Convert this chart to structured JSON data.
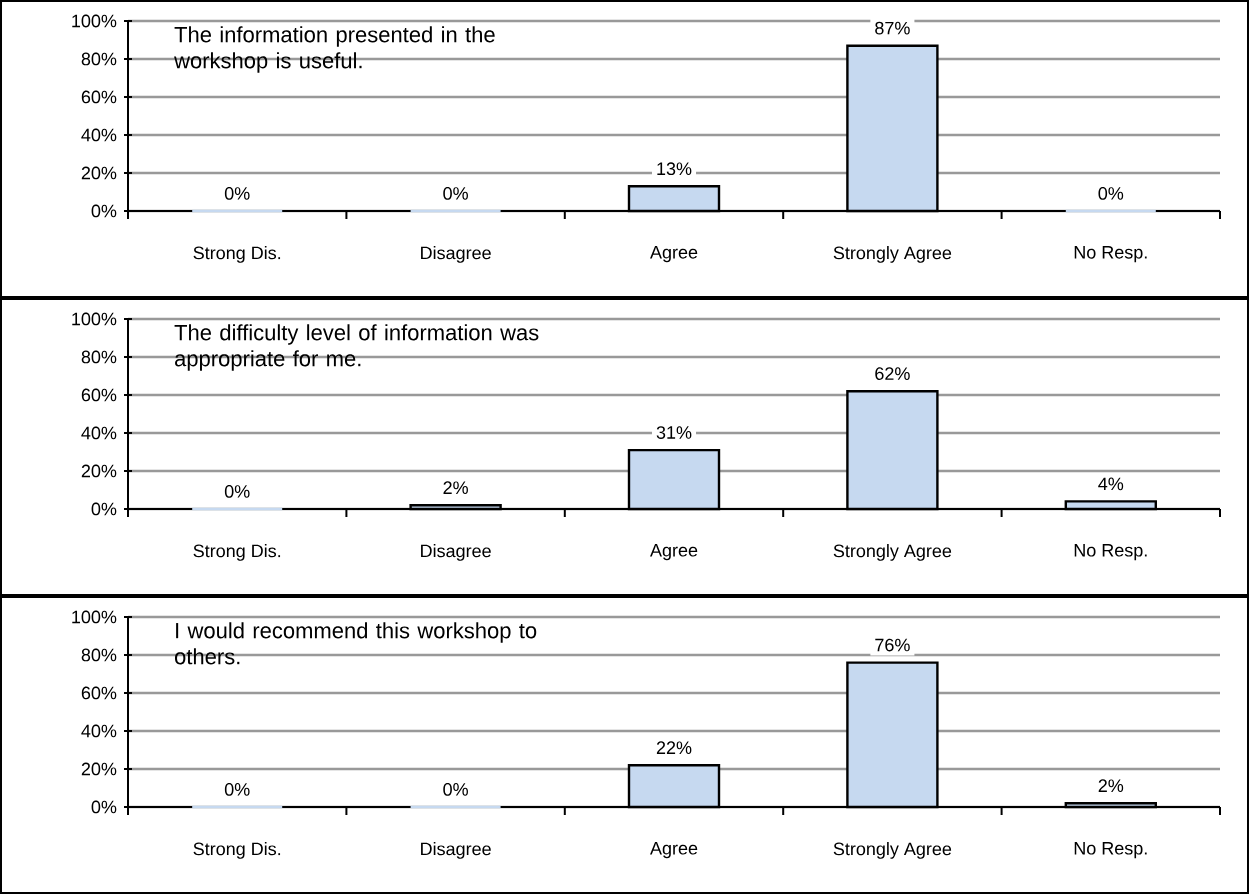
{
  "chart_data": [
    {
      "type": "bar",
      "title": "The information presented in the workshop is useful.",
      "categories": [
        "Strong Dis.",
        "Disagree",
        "Agree",
        "Strongly Agree",
        "No Resp."
      ],
      "values": [
        0,
        0,
        13,
        87,
        0
      ],
      "value_labels": [
        "0%",
        "0%",
        "13%",
        "87%",
        "0%"
      ],
      "color": "#c6d9f0",
      "ylim": [
        0,
        100
      ],
      "yticks": [
        {
          "value": 0,
          "label": "0%"
        },
        {
          "value": 20,
          "label": "20%"
        },
        {
          "value": 40,
          "label": "40%"
        },
        {
          "value": 60,
          "label": "60%"
        },
        {
          "value": 80,
          "label": "80%"
        },
        {
          "value": 100,
          "label": "100%"
        }
      ],
      "grid": "y"
    },
    {
      "type": "bar",
      "title": "The difficulty level of information was appropriate for me.",
      "categories": [
        "Strong Dis.",
        "Disagree",
        "Agree",
        "Strongly Agree",
        "No Resp."
      ],
      "values": [
        0,
        2,
        31,
        62,
        4
      ],
      "value_labels": [
        "0%",
        "2%",
        "31%",
        "62%",
        "4%"
      ],
      "color": "#c6d9f0",
      "ylim": [
        0,
        100
      ],
      "yticks": [
        {
          "value": 0,
          "label": "0%"
        },
        {
          "value": 20,
          "label": "20%"
        },
        {
          "value": 40,
          "label": "40%"
        },
        {
          "value": 60,
          "label": "60%"
        },
        {
          "value": 80,
          "label": "80%"
        },
        {
          "value": 100,
          "label": "100%"
        }
      ],
      "grid": "y"
    },
    {
      "type": "bar",
      "title": "I would recommend this workshop to others.",
      "categories": [
        "Strong Dis.",
        "Disagree",
        "Agree",
        "Strongly Agree",
        "No Resp."
      ],
      "values": [
        0,
        0,
        22,
        76,
        2
      ],
      "value_labels": [
        "0%",
        "0%",
        "22%",
        "76%",
        "2%"
      ],
      "color": "#c6d9f0",
      "ylim": [
        0,
        100
      ],
      "yticks": [
        {
          "value": 0,
          "label": "0%"
        },
        {
          "value": 20,
          "label": "20%"
        },
        {
          "value": 40,
          "label": "40%"
        },
        {
          "value": 60,
          "label": "60%"
        },
        {
          "value": 80,
          "label": "80%"
        },
        {
          "value": 100,
          "label": "100%"
        }
      ],
      "grid": "y"
    }
  ]
}
